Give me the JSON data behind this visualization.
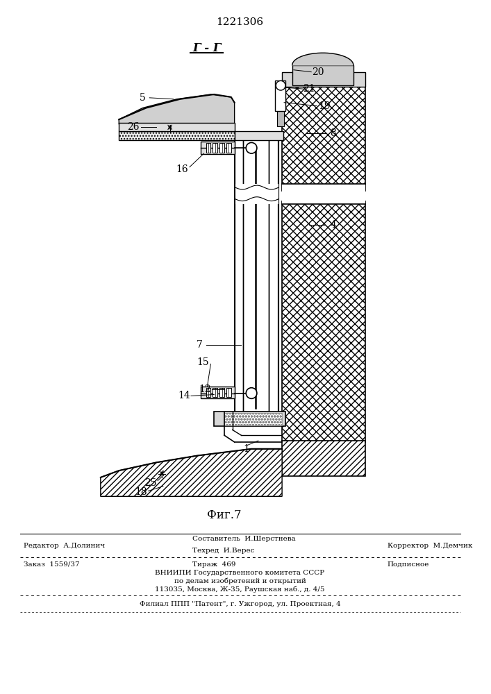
{
  "patent_number": "1221306",
  "figure_label": "Фиг.7",
  "section_label": "Г - Г",
  "bg_color": "#ffffff",
  "line_color": "#000000",
  "footer": {
    "editor": "Редактор  А.Долинич",
    "composer": "Составитель  И.Шерстнева",
    "techred": "Техред  И.Верес",
    "corrector": "Корректор  М.Демчик",
    "order": "Заказ  1559/37",
    "tirazh": "Тираж  469",
    "podpisnoe": "Подписное",
    "vniipie": "ВНИИПИ Государственного комитета СССР",
    "po_delam": "по делам изобретений и открытий",
    "address": "113035, Москва, Ж-35, Раушская наб., д. 4/5",
    "filial": "Филиал ППП \"Патент\", г. Ужгород, ул. Проектная, 4"
  }
}
